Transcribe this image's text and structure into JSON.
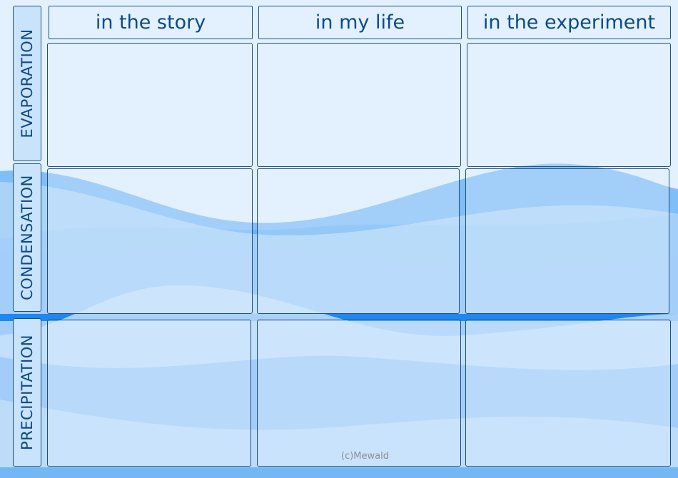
{
  "columns": [
    "in the story",
    "in my life",
    "in the experiment"
  ],
  "rows": [
    "EVAPORATION",
    "CONDENSATION",
    "PRECIPITATION"
  ],
  "copyright": "(c)Mewald",
  "colors": {
    "background": "#e3f1fe",
    "border": "#1d4f80",
    "text": "#0d4a86",
    "wave_dark": "#1e88f0",
    "wave_mid": "#73b8f5",
    "wave_light": "#bcdcfa"
  }
}
